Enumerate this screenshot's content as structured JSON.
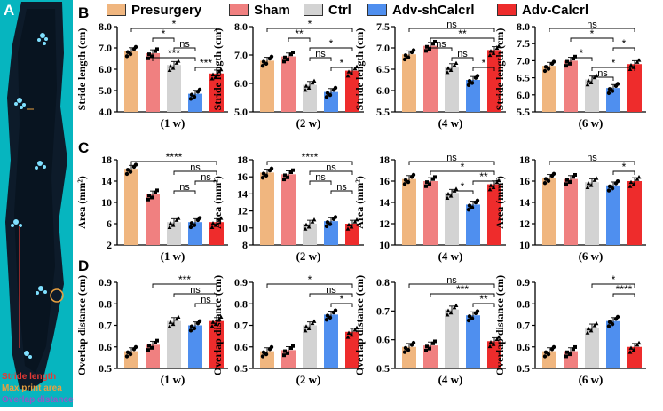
{
  "panel_letters": [
    "A",
    "B",
    "C",
    "D"
  ],
  "legend": {
    "items": [
      {
        "label": "Presurgery",
        "color": "#F0B67F"
      },
      {
        "label": "Sham",
        "color": "#F08080"
      },
      {
        "label": "Ctrl",
        "color": "#D3D3D3"
      },
      {
        "label": "Adv-shCalcrl",
        "color": "#4F8FEF"
      },
      {
        "label": "Adv-Calcrl",
        "color": "#EE2C2C"
      }
    ]
  },
  "left_image": {
    "labels": [
      "Stride length",
      "Max print area",
      "Overlap distance"
    ],
    "label_colors": [
      "#E53935",
      "#E8A040",
      "#8E5BC8"
    ]
  },
  "chart_data": [
    {
      "type": "bar",
      "row": "B",
      "time": "(1 w)",
      "ylabel": "Stride length (cm)",
      "ylim": [
        4.0,
        8.0
      ],
      "ticks": [
        "4.0",
        "5.0",
        "6.0",
        "7.0",
        "8.0"
      ],
      "categories": [
        "Presurgery",
        "Sham",
        "Ctrl",
        "Adv-shCalcrl",
        "Adv-Calcrl"
      ],
      "values": [
        6.85,
        6.75,
        6.2,
        4.85,
        5.8
      ],
      "significance": [
        {
          "from": 0,
          "to": 4,
          "label": "*"
        },
        {
          "from": 1,
          "to": 2,
          "label": "*"
        },
        {
          "from": 2,
          "to": 3,
          "label": "ns"
        },
        {
          "from": 1,
          "to": 3,
          "label": "***"
        },
        {
          "from": 3,
          "to": 4,
          "label": "***"
        }
      ]
    },
    {
      "type": "bar",
      "row": "B",
      "time": "(2 w)",
      "ylabel": "Stride length (cm)",
      "ylim": [
        5.0,
        8.0
      ],
      "ticks": [
        "5.0",
        "6.0",
        "7.0",
        "8.0"
      ],
      "categories": [
        "Presurgery",
        "Sham",
        "Ctrl",
        "Adv-shCalcrl",
        "Adv-Calcrl"
      ],
      "values": [
        6.8,
        6.95,
        5.95,
        5.7,
        6.45
      ],
      "significance": [
        {
          "from": 0,
          "to": 4,
          "label": "*"
        },
        {
          "from": 1,
          "to": 2,
          "label": "**"
        },
        {
          "from": 2,
          "to": 4,
          "label": "*"
        },
        {
          "from": 2,
          "to": 3,
          "label": "ns"
        },
        {
          "from": 3,
          "to": 4,
          "label": "*"
        }
      ]
    },
    {
      "type": "bar",
      "row": "B",
      "time": "(4 w)",
      "ylabel": "Stride length (cm)",
      "ylim": [
        5.5,
        7.5
      ],
      "ticks": [
        "5.5",
        "6.0",
        "6.5",
        "7.0",
        "7.5"
      ],
      "categories": [
        "Presurgery",
        "Sham",
        "Ctrl",
        "Adv-shCalcrl",
        "Adv-Calcrl"
      ],
      "values": [
        6.85,
        7.05,
        6.55,
        6.25,
        6.95
      ],
      "significance": [
        {
          "from": 0,
          "to": 4,
          "label": "ns"
        },
        {
          "from": 1,
          "to": 4,
          "label": "**"
        },
        {
          "from": 1,
          "to": 2,
          "label": "ns"
        },
        {
          "from": 2,
          "to": 3,
          "label": "ns"
        },
        {
          "from": 3,
          "to": 4,
          "label": "*"
        }
      ]
    },
    {
      "type": "bar",
      "row": "B",
      "time": "(6 w)",
      "ylabel": "Stride length (cm)",
      "ylim": [
        5.5,
        8.0
      ],
      "ticks": [
        "5.5",
        "6.0",
        "6.5",
        "7.0",
        "7.5",
        "8.0"
      ],
      "categories": [
        "Presurgery",
        "Sham",
        "Ctrl",
        "Adv-shCalcrl",
        "Adv-Calcrl"
      ],
      "values": [
        6.85,
        7.0,
        6.45,
        6.2,
        6.9
      ],
      "significance": [
        {
          "from": 0,
          "to": 4,
          "label": "ns"
        },
        {
          "from": 1,
          "to": 3,
          "label": "*"
        },
        {
          "from": 3,
          "to": 4,
          "label": "*"
        },
        {
          "from": 1,
          "to": 2,
          "label": "*"
        },
        {
          "from": 2,
          "to": 4,
          "label": "*"
        },
        {
          "from": 2,
          "to": 3,
          "label": "ns"
        }
      ]
    },
    {
      "type": "bar",
      "row": "C",
      "time": "(1 w)",
      "ylabel": "Area (mm²)",
      "ylim": [
        2,
        18
      ],
      "ticks": [
        "2",
        "6",
        "10",
        "14",
        "18"
      ],
      "categories": [
        "Presurgery",
        "Sham",
        "Ctrl",
        "Adv-shCalcrl",
        "Adv-Calcrl"
      ],
      "values": [
        16.3,
        11.5,
        6.3,
        6.3,
        6.3
      ],
      "significance": [
        {
          "from": 0,
          "to": 4,
          "label": "****"
        },
        {
          "from": 2,
          "to": 4,
          "label": "ns"
        },
        {
          "from": 3,
          "to": 4,
          "label": "ns"
        },
        {
          "from": 2,
          "to": 3,
          "label": "ns"
        }
      ]
    },
    {
      "type": "bar",
      "row": "C",
      "time": "(2 w)",
      "ylabel": "Area (mm²)",
      "ylim": [
        8,
        18
      ],
      "ticks": [
        "8",
        "10",
        "12",
        "14",
        "16",
        "18"
      ],
      "categories": [
        "Presurgery",
        "Sham",
        "Ctrl",
        "Adv-shCalcrl",
        "Adv-Calcrl"
      ],
      "values": [
        16.5,
        16.3,
        10.5,
        10.8,
        10.5
      ],
      "significance": [
        {
          "from": 0,
          "to": 4,
          "label": "****"
        },
        {
          "from": 2,
          "to": 4,
          "label": "ns"
        },
        {
          "from": 2,
          "to": 3,
          "label": "ns"
        },
        {
          "from": 3,
          "to": 4,
          "label": "ns"
        }
      ]
    },
    {
      "type": "bar",
      "row": "C",
      "time": "(4 w)",
      "ylabel": "Area (mm²)",
      "ylim": [
        10,
        18
      ],
      "ticks": [
        "10",
        "12",
        "14",
        "16",
        "18"
      ],
      "categories": [
        "Presurgery",
        "Sham",
        "Ctrl",
        "Adv-shCalcrl",
        "Adv-Calcrl"
      ],
      "values": [
        16.2,
        16.0,
        14.9,
        13.8,
        15.7
      ],
      "significance": [
        {
          "from": 0,
          "to": 4,
          "label": "ns"
        },
        {
          "from": 1,
          "to": 4,
          "label": "*"
        },
        {
          "from": 3,
          "to": 4,
          "label": "**"
        },
        {
          "from": 2,
          "to": 3,
          "label": "*"
        }
      ]
    },
    {
      "type": "bar",
      "row": "C",
      "time": "(6 w)",
      "ylabel": "Area (mm²)",
      "ylim": [
        10,
        18
      ],
      "ticks": [
        "10",
        "12",
        "14",
        "16",
        "18"
      ],
      "categories": [
        "Presurgery",
        "Sham",
        "Ctrl",
        "Adv-shCalcrl",
        "Adv-Calcrl"
      ],
      "values": [
        16.3,
        16.2,
        15.9,
        15.6,
        16.0
      ],
      "significance": [
        {
          "from": 0,
          "to": 4,
          "label": "ns"
        },
        {
          "from": 3,
          "to": 4,
          "label": "*"
        }
      ]
    },
    {
      "type": "bar",
      "row": "D",
      "time": "(1 w)",
      "ylabel": "Overlap distance (cm)",
      "ylim": [
        0.5,
        0.9
      ],
      "ticks": [
        "0.5",
        "0.6",
        "0.7",
        "0.8",
        "0.9"
      ],
      "categories": [
        "Presurgery",
        "Sham",
        "Ctrl",
        "Adv-shCalcrl",
        "Adv-Calcrl"
      ],
      "values": [
        0.58,
        0.61,
        0.72,
        0.7,
        0.72
      ],
      "significance": [
        {
          "from": 1,
          "to": 4,
          "label": "***"
        },
        {
          "from": 2,
          "to": 4,
          "label": "ns"
        },
        {
          "from": 3,
          "to": 4,
          "label": "ns"
        }
      ]
    },
    {
      "type": "bar",
      "row": "D",
      "time": "(2 w)",
      "ylabel": "Overlap distance (cm)",
      "ylim": [
        0.5,
        0.9
      ],
      "ticks": [
        "0.5",
        "0.6",
        "0.7",
        "0.8",
        "0.9"
      ],
      "categories": [
        "Presurgery",
        "Sham",
        "Ctrl",
        "Adv-shCalcrl",
        "Adv-Calcrl"
      ],
      "values": [
        0.58,
        0.585,
        0.7,
        0.75,
        0.67
      ],
      "significance": [
        {
          "from": 0,
          "to": 4,
          "label": "*"
        },
        {
          "from": 2,
          "to": 4,
          "label": "ns"
        },
        {
          "from": 3,
          "to": 4,
          "label": "*"
        }
      ]
    },
    {
      "type": "bar",
      "row": "D",
      "time": "(4 w)",
      "ylabel": "Overlap distance (cm)",
      "ylim": [
        0.5,
        0.8
      ],
      "ticks": [
        "0.5",
        "0.6",
        "0.7",
        "0.8"
      ],
      "categories": [
        "Presurgery",
        "Sham",
        "Ctrl",
        "Adv-shCalcrl",
        "Adv-Calcrl"
      ],
      "values": [
        0.575,
        0.58,
        0.705,
        0.685,
        0.595
      ],
      "significance": [
        {
          "from": 0,
          "to": 4,
          "label": "ns"
        },
        {
          "from": 1,
          "to": 4,
          "label": "***"
        },
        {
          "from": 3,
          "to": 4,
          "label": "**"
        }
      ]
    },
    {
      "type": "bar",
      "row": "D",
      "time": "(6 w)",
      "ylabel": "Overlap distance (cm)",
      "ylim": [
        0.5,
        0.9
      ],
      "ticks": [
        "0.5",
        "0.6",
        "0.7",
        "0.8",
        "0.9"
      ],
      "categories": [
        "Presurgery",
        "Sham",
        "Ctrl",
        "Adv-shCalcrl",
        "Adv-Calcrl"
      ],
      "values": [
        0.58,
        0.58,
        0.69,
        0.72,
        0.6
      ],
      "significance": [
        {
          "from": 2,
          "to": 4,
          "label": "*"
        },
        {
          "from": 3,
          "to": 4,
          "label": "****"
        }
      ]
    }
  ]
}
